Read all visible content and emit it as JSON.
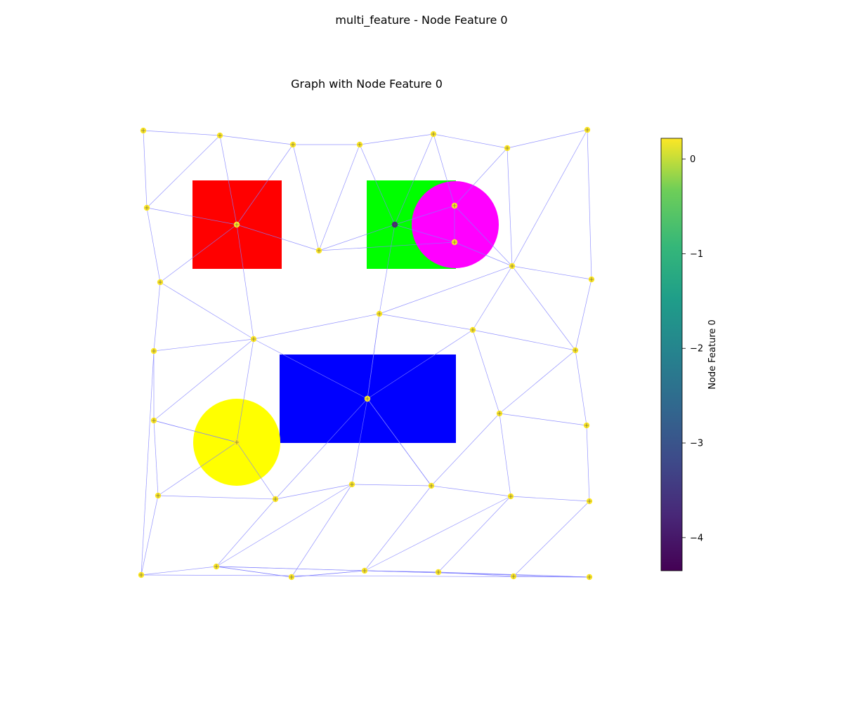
{
  "figure_title": "multi_feature - Node Feature 0",
  "axes_title": "Graph with Node Feature 0",
  "colorbar": {
    "label": "Node Feature 0",
    "ticks": [
      0,
      -1,
      -2,
      -3,
      -4
    ],
    "tick_labels": [
      "0",
      "−1",
      "−2",
      "−3",
      "−4"
    ],
    "range": [
      -4.35,
      0.22
    ],
    "colormap": "viridis"
  },
  "shapes": [
    {
      "type": "square",
      "color": "#ff0000",
      "x": 0,
      "y": 0
    },
    {
      "type": "square",
      "color": "#00ff00",
      "x": 0,
      "y": 0
    },
    {
      "type": "circle",
      "color": "#ff00ff",
      "x": 0,
      "y": 0
    },
    {
      "type": "rectangle",
      "color": "#0000ff",
      "x": 0,
      "y": 0
    },
    {
      "type": "circle",
      "color": "#ffff00",
      "x": 0,
      "y": 0
    }
  ],
  "edge_color": "#8080ff",
  "nodes": [
    {
      "id": 0,
      "value": 0.2
    },
    {
      "id": 1,
      "value": 0.2
    },
    {
      "id": 2,
      "value": 0.2
    },
    {
      "id": 3,
      "value": 0.2
    },
    {
      "id": 4,
      "value": 0.2
    },
    {
      "id": 5,
      "value": 0.2
    },
    {
      "id": 6,
      "value": 0.2
    },
    {
      "id": 7,
      "value": 0.2
    },
    {
      "id": 8,
      "value": 0.2
    },
    {
      "id": 9,
      "value": -3.9
    },
    {
      "id": 10,
      "value": 0.2
    },
    {
      "id": 11,
      "value": 0.2
    },
    {
      "id": 12,
      "value": 0.2
    },
    {
      "id": 13,
      "value": 0.2
    },
    {
      "id": 14,
      "value": 0.2
    },
    {
      "id": 15,
      "value": 0.2
    },
    {
      "id": 16,
      "value": 0.2
    },
    {
      "id": 17,
      "value": 0.2
    },
    {
      "id": 18,
      "value": 0.2
    },
    {
      "id": 19,
      "value": 0.2
    },
    {
      "id": 20,
      "value": 0.2
    },
    {
      "id": 21,
      "value": 0.2
    },
    {
      "id": 22,
      "value": 0.2
    },
    {
      "id": 23,
      "value": -4.3
    },
    {
      "id": 24,
      "value": 0.2
    },
    {
      "id": 25,
      "value": 0.2
    },
    {
      "id": 26,
      "value": 0.2
    },
    {
      "id": 27,
      "value": 0.2
    },
    {
      "id": 28,
      "value": 0.2
    },
    {
      "id": 29,
      "value": 0.2
    },
    {
      "id": 30,
      "value": 0.2
    },
    {
      "id": 31,
      "value": 0.2
    },
    {
      "id": 32,
      "value": 0.2
    },
    {
      "id": 33,
      "value": 0.2
    },
    {
      "id": 34,
      "value": 0.2
    },
    {
      "id": 35,
      "value": 0.2
    },
    {
      "id": 36,
      "value": 0.2
    },
    {
      "id": 37,
      "value": 0.2
    },
    {
      "id": 38,
      "value": 0.2
    },
    {
      "id": 39,
      "value": 0.2
    },
    {
      "id": 40,
      "value": 0.2
    },
    {
      "id": 41,
      "value": 0.2
    },
    {
      "id": 42,
      "value": 0.2
    },
    {
      "id": 43,
      "value": 0.2
    },
    {
      "id": 44,
      "value": 0.2
    }
  ],
  "edges": [
    [
      0,
      1
    ],
    [
      0,
      7
    ],
    [
      1,
      2
    ],
    [
      1,
      8
    ],
    [
      1,
      7
    ],
    [
      2,
      3
    ],
    [
      2,
      8
    ],
    [
      2,
      10
    ],
    [
      3,
      4
    ],
    [
      3,
      10
    ],
    [
      3,
      9
    ],
    [
      4,
      5
    ],
    [
      4,
      9
    ],
    [
      4,
      11
    ],
    [
      5,
      6
    ],
    [
      5,
      13
    ],
    [
      5,
      11
    ],
    [
      6,
      13
    ],
    [
      6,
      14
    ],
    [
      7,
      8
    ],
    [
      7,
      15
    ],
    [
      8,
      10
    ],
    [
      8,
      16
    ],
    [
      8,
      15
    ],
    [
      9,
      10
    ],
    [
      9,
      11
    ],
    [
      9,
      12
    ],
    [
      9,
      17
    ],
    [
      11,
      12
    ],
    [
      12,
      13
    ],
    [
      11,
      13
    ],
    [
      13,
      14
    ],
    [
      13,
      18
    ],
    [
      13,
      17
    ],
    [
      14,
      19
    ],
    [
      13,
      19
    ],
    [
      15,
      16
    ],
    [
      15,
      20
    ],
    [
      16,
      20
    ],
    [
      16,
      17
    ],
    [
      16,
      21
    ],
    [
      16,
      23
    ],
    [
      16,
      25
    ],
    [
      17,
      18
    ],
    [
      17,
      23
    ],
    [
      17,
      22
    ],
    [
      18,
      19
    ],
    [
      18,
      24
    ],
    [
      18,
      23
    ],
    [
      19,
      26
    ],
    [
      19,
      24
    ],
    [
      20,
      21
    ],
    [
      21,
      25
    ],
    [
      21,
      27
    ],
    [
      22,
      23
    ],
    [
      22,
      30
    ],
    [
      23,
      29
    ],
    [
      23,
      30
    ],
    [
      23,
      28
    ],
    [
      24,
      26
    ],
    [
      24,
      31
    ],
    [
      24,
      30
    ],
    [
      26,
      32
    ],
    [
      27,
      25
    ],
    [
      27,
      28
    ],
    [
      25,
      28
    ],
    [
      27,
      33
    ],
    [
      28,
      29
    ],
    [
      28,
      34
    ],
    [
      29,
      30
    ],
    [
      29,
      35
    ],
    [
      29,
      34
    ],
    [
      30,
      31
    ],
    [
      30,
      36
    ],
    [
      31,
      32
    ],
    [
      31,
      36
    ],
    [
      31,
      37
    ],
    [
      32,
      38
    ],
    [
      33,
      34
    ],
    [
      33,
      39
    ],
    [
      34,
      39
    ],
    [
      34,
      40
    ],
    [
      35,
      40
    ],
    [
      35,
      41
    ],
    [
      35,
      36
    ],
    [
      36,
      42
    ],
    [
      37,
      42
    ],
    [
      37,
      43
    ],
    [
      38,
      44
    ],
    [
      37,
      38
    ],
    [
      39,
      40
    ],
    [
      40,
      41
    ],
    [
      41,
      42
    ],
    [
      42,
      43
    ],
    [
      43,
      44
    ],
    [
      20,
      33
    ],
    [
      21,
      25
    ],
    [
      10,
      12
    ]
  ]
}
